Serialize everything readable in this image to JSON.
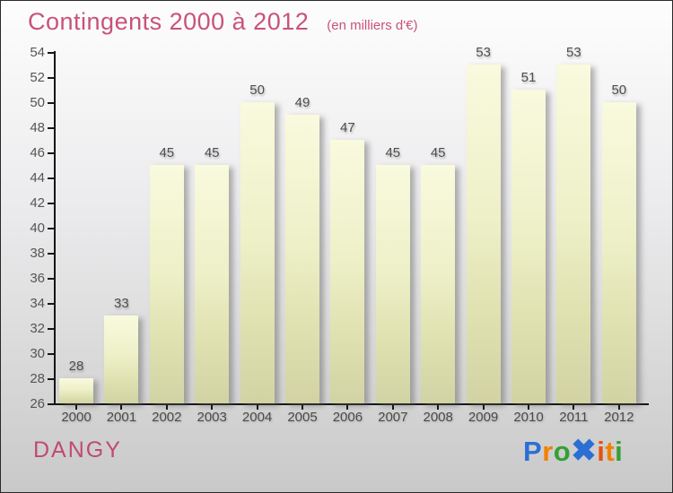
{
  "chart_data": {
    "type": "bar",
    "title": "Contingents 2000 à 2012",
    "subtitle": "(en milliers d'€)",
    "categories": [
      "2000",
      "2001",
      "2002",
      "2003",
      "2004",
      "2005",
      "2006",
      "2007",
      "2008",
      "2009",
      "2010",
      "2011",
      "2012"
    ],
    "values": [
      28,
      33,
      45,
      45,
      50,
      49,
      47,
      45,
      45,
      53,
      51,
      53,
      50
    ],
    "xlabel": "",
    "ylabel": "",
    "ylim": [
      26,
      54
    ],
    "ytick_step": 2,
    "ytick_labels": [
      54,
      52,
      50,
      48,
      46,
      44,
      42,
      40,
      38,
      36,
      34,
      32,
      30,
      28,
      26
    ],
    "grid": "off",
    "legend": "none",
    "bar_color_top": "#f9fade",
    "bar_color_bottom": "#d2d3a4",
    "axis_color": "#161616",
    "label_color": "#4d4d4d"
  },
  "colors": {
    "accent_pink": "#c9527b",
    "background_top": "#fdfdfd",
    "background_bottom": "#c9c9c9"
  },
  "footer": {
    "org": "DANGY",
    "logo_name": "Proxiti",
    "logo_letters": [
      {
        "ch": "P",
        "color": "#2b6fd4",
        "big": false
      },
      {
        "ch": "r",
        "color": "#f08200",
        "big": false
      },
      {
        "ch": "o",
        "color": "#33a033",
        "big": false
      },
      {
        "ch": "✖",
        "color": "#2b6fd4",
        "big": true
      },
      {
        "ch": "i",
        "color": "#e8500f",
        "big": false
      },
      {
        "ch": "t",
        "color": "#f08200",
        "big": false
      },
      {
        "ch": "i",
        "color": "#33a033",
        "big": false
      }
    ]
  }
}
